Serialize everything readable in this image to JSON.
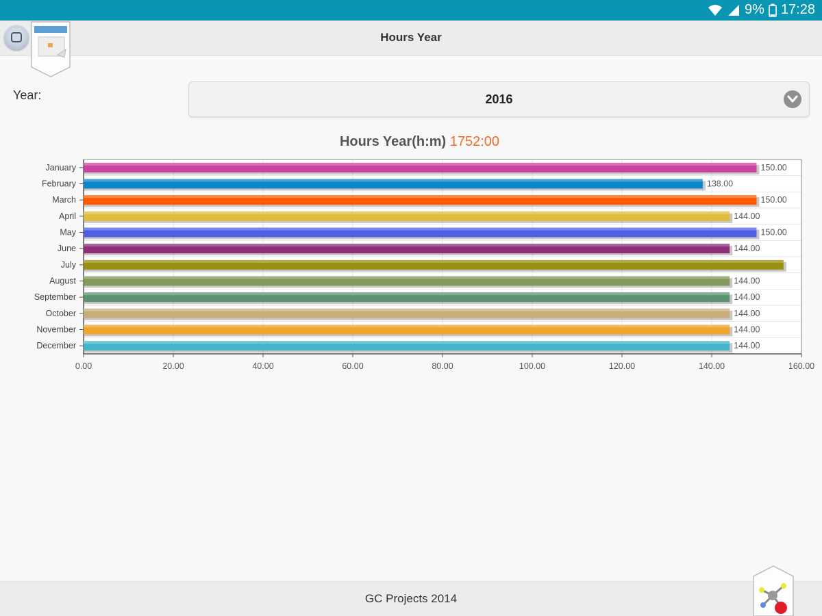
{
  "status_bar": {
    "battery": "9%",
    "time": "17:28"
  },
  "header": {
    "title": "Hours Year"
  },
  "year_label": "Year:",
  "year_select": {
    "value": "2016"
  },
  "chart_title": {
    "label": "Hours Year(h:m)",
    "total": "1752:00"
  },
  "footer": {
    "text": "GC Projects 2014"
  },
  "colors": {
    "status_bar": "#0a95b2",
    "accent_total": "#f36b2a"
  },
  "chart_data": {
    "type": "bar",
    "orientation": "horizontal",
    "categories": [
      "January",
      "February",
      "March",
      "April",
      "May",
      "June",
      "July",
      "August",
      "September",
      "October",
      "November",
      "December"
    ],
    "values": [
      150,
      138,
      150,
      144,
      150,
      144,
      156,
      144,
      144,
      144,
      144,
      144
    ],
    "value_labels": [
      "150.00",
      "138.00",
      "150.00",
      "144.00",
      "150.00",
      "144.00",
      "",
      "144.00",
      "144.00",
      "144.00",
      "144.00",
      "144.00"
    ],
    "colors": [
      "#c9449f",
      "#0c86c9",
      "#ff5a00",
      "#dfbd3f",
      "#4f5ee3",
      "#8e2f78",
      "#999012",
      "#84985a",
      "#5d9272",
      "#c6ad79",
      "#efa42d",
      "#46b4c9"
    ],
    "xlim": [
      0,
      160
    ],
    "ticks": [
      "0.00",
      "20.00",
      "40.00",
      "60.00",
      "80.00",
      "100.00",
      "120.00",
      "140.00",
      "160.00"
    ],
    "grid": true
  }
}
